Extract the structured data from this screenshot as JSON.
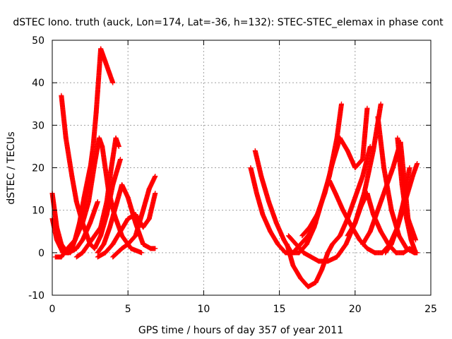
{
  "chart_data": {
    "type": "scatter",
    "title": "dSTEC Iono. truth (auck, Lon=174, Lat=-36, h=132): STEC-STEC_elemax in phase cont",
    "xlabel": "GPS time / hours of day 357 of year 2011",
    "ylabel": "dSTEC  / TECUs",
    "xlim": [
      0,
      25
    ],
    "ylim": [
      -10,
      50
    ],
    "xticks": [
      "0",
      "5",
      "10",
      "15",
      "20",
      "25"
    ],
    "yticks": [
      "-10",
      "0",
      "10",
      "20",
      "30",
      "40",
      "50"
    ],
    "grid": true,
    "marker": "+",
    "color": "#ff0000",
    "series": [
      {
        "x": [
          0.0,
          0.3,
          0.6,
          1.0,
          1.5,
          1.8,
          2.1,
          2.5,
          2.7
        ],
        "y": [
          14,
          6,
          2,
          0,
          3,
          7,
          13,
          20,
          22
        ]
      },
      {
        "x": [
          0.0,
          0.3,
          0.7,
          1.1,
          1.6,
          2.0,
          2.5,
          3.0
        ],
        "y": [
          8,
          3,
          0,
          0,
          1,
          3,
          7,
          12
        ]
      },
      {
        "x": [
          0.6,
          0.9,
          1.3,
          1.6,
          2.0,
          2.5,
          2.8,
          3.2,
          3.6,
          4.0,
          4.5
        ],
        "y": [
          37,
          27,
          18,
          12,
          7,
          2,
          1,
          4,
          9,
          16,
          22
        ]
      },
      {
        "x": [
          0.2,
          0.6,
          1.0,
          1.5,
          2.0,
          2.4,
          2.8,
          3.1,
          3.3,
          3.7,
          4.1,
          4.6,
          5.2,
          5.9
        ],
        "y": [
          -1,
          -1,
          1,
          3,
          7,
          12,
          21,
          27,
          25,
          15,
          9,
          4,
          1,
          0
        ]
      },
      {
        "x": [
          1.2,
          1.6,
          2.0,
          2.4,
          2.7,
          2.9,
          3.0,
          3.2,
          3.5,
          4.0
        ],
        "y": [
          0,
          4,
          10,
          17,
          25,
          33,
          38,
          48,
          45,
          40
        ]
      },
      {
        "x": [
          1.6,
          2.0,
          2.6,
          3.2,
          3.6,
          3.9,
          4.2,
          4.4
        ],
        "y": [
          -1,
          0,
          3,
          6,
          12,
          20,
          27,
          25
        ]
      },
      {
        "x": [
          3.0,
          3.4,
          3.8,
          4.2,
          4.6,
          5.0,
          5.5,
          6.0,
          6.5,
          6.8
        ],
        "y": [
          0,
          2,
          6,
          11,
          16,
          13,
          7,
          2,
          1,
          1
        ]
      },
      {
        "x": [
          3.0,
          3.5,
          4.0,
          4.5,
          5.0,
          5.5,
          6.0,
          6.4,
          6.8
        ],
        "y": [
          -1,
          0,
          2,
          5,
          8,
          9,
          6,
          8,
          14
        ]
      },
      {
        "x": [
          4.0,
          4.3,
          4.6,
          5.0,
          5.5,
          6.0,
          6.4,
          6.8
        ],
        "y": [
          -1,
          0,
          1,
          2,
          4,
          10,
          15,
          18
        ]
      },
      {
        "x": [
          13.1,
          13.5,
          13.9,
          14.4,
          14.9,
          15.4,
          15.9,
          16.4,
          16.9,
          17.4
        ],
        "y": [
          20,
          14,
          9,
          5,
          2,
          0,
          0,
          2,
          4,
          7
        ]
      },
      {
        "x": [
          13.4,
          13.8,
          14.3,
          14.8,
          15.3,
          15.8,
          16.3,
          16.8,
          17.3,
          17.8,
          18.3,
          18.8,
          19.1
        ],
        "y": [
          24,
          18,
          12,
          7,
          3,
          0,
          0,
          2,
          6,
          12,
          18,
          27,
          35
        ]
      },
      {
        "x": [
          15.5,
          15.9,
          16.4,
          16.9,
          17.4,
          17.8,
          18.2,
          18.5,
          19.0,
          19.5,
          20.0,
          20.5,
          21.0
        ],
        "y": [
          2,
          -3,
          -6,
          -8,
          -7,
          -4,
          0,
          2,
          4,
          8,
          13,
          18,
          25
        ]
      },
      {
        "x": [
          15.6,
          16.1,
          16.6,
          17.1,
          17.6,
          18.2,
          18.8,
          19.4,
          20.0,
          20.6,
          21.2,
          21.7
        ],
        "y": [
          4,
          2,
          0,
          -1,
          -2,
          -2,
          -1,
          2,
          7,
          14,
          24,
          35
        ]
      },
      {
        "x": [
          16.5,
          17.0,
          17.5,
          18.0,
          18.5,
          19.0,
          19.5,
          20.0,
          20.5,
          20.8
        ],
        "y": [
          4,
          6,
          9,
          14,
          21,
          27,
          24,
          20,
          22,
          34
        ]
      },
      {
        "x": [
          18.3,
          18.7,
          19.2,
          19.8,
          20.3,
          20.8,
          21.3,
          21.8,
          22.3,
          22.8,
          23.3,
          23.8,
          24.1
        ],
        "y": [
          17,
          14,
          10,
          6,
          3,
          1,
          0,
          0,
          2,
          6,
          12,
          18,
          21
        ]
      },
      {
        "x": [
          19.5,
          20.0,
          20.4,
          20.8,
          21.2,
          21.7,
          22.2,
          22.7,
          23.2,
          23.6,
          24.0
        ],
        "y": [
          4,
          7,
          11,
          14,
          9,
          5,
          2,
          0,
          0,
          1,
          0
        ]
      },
      {
        "x": [
          20.5,
          21.0,
          21.5,
          22.0,
          22.5,
          23.0,
          23.5,
          24.0
        ],
        "y": [
          2,
          5,
          10,
          15,
          20,
          26,
          8,
          3
        ]
      },
      {
        "x": [
          21.5,
          21.9,
          22.4,
          22.9,
          23.4,
          23.9,
          24.1
        ],
        "y": [
          32,
          20,
          10,
          4,
          1,
          0,
          0
        ]
      },
      {
        "x": [
          22.0,
          22.4,
          22.8,
          23.2,
          23.6
        ],
        "y": [
          0,
          2,
          6,
          12,
          20
        ]
      },
      {
        "x": [
          22.8,
          23.1,
          23.4,
          23.7,
          24.0
        ],
        "y": [
          27,
          16,
          8,
          3,
          0
        ]
      }
    ]
  }
}
